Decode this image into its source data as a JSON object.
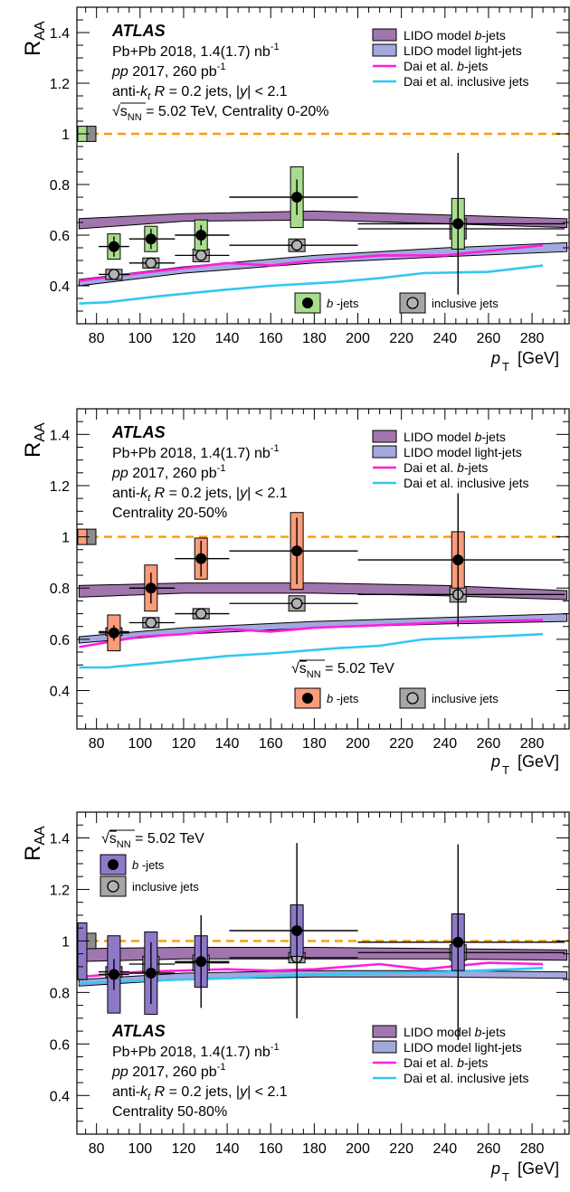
{
  "colors": {
    "lido_b": "#a175ad",
    "lido_light": "#a3a8dd",
    "dai_b": "#ff1ee1",
    "dai_incl": "#33c6f4",
    "ref_line": "#ff9a00"
  },
  "legend": {
    "lido_b": "LIDO model b-jets",
    "lido_light": "LIDO model light-jets",
    "dai_b": "Dai et al. b-jets",
    "dai_incl": "Dai et al. inclusive jets",
    "bjets": "b-jets",
    "incl": "inclusive jets"
  },
  "text": {
    "atlas": "ATLAS",
    "pbpb": "Pb+Pb 2018, 1.4(1.7) nb-1",
    "pp": "pp 2017, 260 pb-1",
    "jets": "anti-kt R = 0.2 jets, |y| < 2.1",
    "sqrts": "√sNN = 5.02 TeV"
  },
  "chart_data": [
    {
      "type": "scatter",
      "centrality": "Centrality 0-20%",
      "ylabel": "RAA",
      "xlabel": "pT [GeV]",
      "xlim": [
        71,
        297
      ],
      "ylim": [
        0.25,
        1.5
      ],
      "xticks": [
        80,
        100,
        120,
        140,
        160,
        180,
        200,
        220,
        240,
        260,
        280
      ],
      "yticks": [
        0.4,
        0.6,
        0.8,
        1.0,
        1.2,
        1.4
      ],
      "box_color": "#a9dd8d",
      "bjets": {
        "x": [
          88,
          105,
          128,
          172,
          246
        ],
        "xerr": [
          [
            81,
            95
          ],
          [
            95,
            116
          ],
          [
            116,
            141
          ],
          [
            141,
            200
          ],
          [
            200,
            295
          ]
        ],
        "y": [
          0.555,
          0.585,
          0.6,
          0.75,
          0.645
        ],
        "yerr": [
          0.04,
          0.04,
          0.04,
          0.07,
          0.28
        ],
        "syst": [
          0.05,
          0.05,
          0.06,
          0.12,
          0.1
        ]
      },
      "incl": {
        "x": [
          88,
          105,
          128,
          172,
          246
        ],
        "xerr": [
          [
            81,
            95
          ],
          [
            95,
            116
          ],
          [
            116,
            141
          ],
          [
            141,
            200
          ],
          [
            200,
            295
          ]
        ],
        "y": [
          0.445,
          0.49,
          0.52,
          0.56,
          0.625
        ],
        "yerr": [
          0.01,
          0.01,
          0.01,
          0.01,
          0.01
        ],
        "syst": [
          0.02,
          0.02,
          0.025,
          0.025,
          0.04
        ]
      },
      "lido_b": {
        "x": [
          72,
          120,
          180,
          240,
          296
        ],
        "lo": [
          0.625,
          0.655,
          0.66,
          0.645,
          0.63
        ],
        "hi": [
          0.665,
          0.685,
          0.695,
          0.68,
          0.665
        ]
      },
      "lido_light": {
        "x": [
          72,
          120,
          180,
          240,
          296
        ],
        "lo": [
          0.4,
          0.45,
          0.49,
          0.515,
          0.535
        ],
        "hi": [
          0.425,
          0.475,
          0.52,
          0.55,
          0.57
        ]
      },
      "dai_b": {
        "x": [
          72,
          100,
          140,
          160,
          180,
          210,
          240,
          285
        ],
        "y": [
          0.42,
          0.45,
          0.49,
          0.48,
          0.5,
          0.52,
          0.52,
          0.56
        ]
      },
      "dai_incl": {
        "x": [
          72,
          85,
          110,
          140,
          160,
          190,
          210,
          230,
          260,
          285
        ],
        "y": [
          0.33,
          0.335,
          0.36,
          0.385,
          0.4,
          0.415,
          0.43,
          0.45,
          0.455,
          0.48
        ]
      },
      "norm_box": {
        "b": [
          0.97,
          1.03
        ],
        "incl": [
          0.97,
          1.03
        ]
      }
    },
    {
      "type": "scatter",
      "centrality": "Centrality 20-50%",
      "ylabel": "RAA",
      "xlabel": "pT [GeV]",
      "xlim": [
        71,
        297
      ],
      "ylim": [
        0.25,
        1.5
      ],
      "xticks": [
        80,
        100,
        120,
        140,
        160,
        180,
        200,
        220,
        240,
        260,
        280
      ],
      "yticks": [
        0.4,
        0.6,
        0.8,
        1.0,
        1.2,
        1.4
      ],
      "box_color": "#fa9b7a",
      "bjets": {
        "x": [
          88,
          105,
          128,
          172,
          246
        ],
        "xerr": [
          [
            81,
            95
          ],
          [
            95,
            116
          ],
          [
            116,
            141
          ],
          [
            141,
            200
          ],
          [
            200,
            295
          ]
        ],
        "y": [
          0.625,
          0.8,
          0.915,
          0.945,
          0.91
        ],
        "yerr": [
          0.03,
          0.06,
          0.07,
          0.13,
          0.26
        ],
        "syst": [
          0.07,
          0.09,
          0.08,
          0.15,
          0.11
        ]
      },
      "incl": {
        "x": [
          88,
          105,
          128,
          172,
          246
        ],
        "xerr": [
          [
            81,
            95
          ],
          [
            95,
            116
          ],
          [
            116,
            141
          ],
          [
            141,
            200
          ],
          [
            200,
            295
          ]
        ],
        "y": [
          0.63,
          0.665,
          0.7,
          0.74,
          0.775
        ],
        "yerr": [
          0.01,
          0.01,
          0.01,
          0.01,
          0.01
        ],
        "syst": [
          0.015,
          0.02,
          0.02,
          0.03,
          0.03
        ]
      },
      "lido_b": {
        "x": [
          72,
          120,
          180,
          240,
          296
        ],
        "lo": [
          0.765,
          0.78,
          0.78,
          0.77,
          0.755
        ],
        "hi": [
          0.81,
          0.82,
          0.82,
          0.81,
          0.79
        ]
      },
      "lido_light": {
        "x": [
          72,
          120,
          180,
          240,
          296
        ],
        "lo": [
          0.585,
          0.62,
          0.645,
          0.66,
          0.67
        ],
        "hi": [
          0.61,
          0.645,
          0.67,
          0.685,
          0.7
        ]
      },
      "dai_b": {
        "x": [
          72,
          100,
          120,
          140,
          160,
          180,
          210,
          250,
          285
        ],
        "y": [
          0.57,
          0.61,
          0.62,
          0.64,
          0.63,
          0.645,
          0.655,
          0.67,
          0.675
        ]
      },
      "dai_incl": {
        "x": [
          72,
          85,
          110,
          140,
          160,
          190,
          210,
          230,
          260,
          285
        ],
        "y": [
          0.49,
          0.49,
          0.51,
          0.535,
          0.545,
          0.565,
          0.575,
          0.6,
          0.61,
          0.62
        ]
      },
      "norm_box": {
        "b": [
          0.97,
          1.03
        ],
        "incl": [
          0.97,
          1.03
        ]
      }
    },
    {
      "type": "scatter",
      "centrality": "Centrality 50-80%",
      "ylabel": "RAA",
      "xlabel": "pT [GeV]",
      "xlim": [
        71,
        297
      ],
      "ylim": [
        0.25,
        1.5
      ],
      "xticks": [
        80,
        100,
        120,
        140,
        160,
        180,
        200,
        220,
        240,
        260,
        280
      ],
      "yticks": [
        0.4,
        0.6,
        0.8,
        1.0,
        1.2,
        1.4
      ],
      "box_color": "#8e79c9",
      "bjets": {
        "x": [
          88,
          105,
          128,
          172,
          246
        ],
        "xerr": [
          [
            81,
            95
          ],
          [
            95,
            116
          ],
          [
            116,
            141
          ],
          [
            141,
            200
          ],
          [
            200,
            295
          ]
        ],
        "y": [
          0.87,
          0.875,
          0.92,
          1.04,
          0.995
        ],
        "yerr": [
          0.06,
          0.12,
          0.18,
          0.34,
          0.38
        ],
        "syst": [
          0.15,
          0.16,
          0.1,
          0.1,
          0.11
        ]
      },
      "incl": {
        "x": [
          88,
          105,
          128,
          172,
          246
        ],
        "xerr": [
          [
            81,
            95
          ],
          [
            95,
            116
          ],
          [
            116,
            141
          ],
          [
            141,
            200
          ],
          [
            200,
            295
          ]
        ],
        "y": [
          0.88,
          0.91,
          0.915,
          0.935,
          0.955
        ],
        "yerr": [
          0.01,
          0.01,
          0.01,
          0.01,
          0.01
        ],
        "syst": [
          0.02,
          0.03,
          0.03,
          0.02,
          0.03
        ]
      },
      "lido_b": {
        "x": [
          72,
          120,
          180,
          240,
          296
        ],
        "lo": [
          0.92,
          0.93,
          0.93,
          0.93,
          0.925
        ],
        "hi": [
          0.97,
          0.975,
          0.975,
          0.97,
          0.965
        ]
      },
      "lido_light": {
        "x": [
          72,
          120,
          180,
          240,
          296
        ],
        "lo": [
          0.825,
          0.85,
          0.86,
          0.86,
          0.855
        ],
        "hi": [
          0.85,
          0.875,
          0.885,
          0.885,
          0.88
        ]
      },
      "dai_b": {
        "x": [
          72,
          100,
          140,
          160,
          180,
          210,
          230,
          260,
          285
        ],
        "y": [
          0.86,
          0.88,
          0.89,
          0.885,
          0.89,
          0.91,
          0.89,
          0.915,
          0.91
        ]
      },
      "dai_incl": {
        "x": [
          72,
          100,
          140,
          180,
          210,
          240,
          285
        ],
        "y": [
          0.835,
          0.845,
          0.855,
          0.87,
          0.875,
          0.88,
          0.895
        ]
      },
      "norm_box": {
        "b": [
          0.85,
          1.07
        ],
        "incl": [
          0.97,
          1.03
        ]
      }
    }
  ]
}
